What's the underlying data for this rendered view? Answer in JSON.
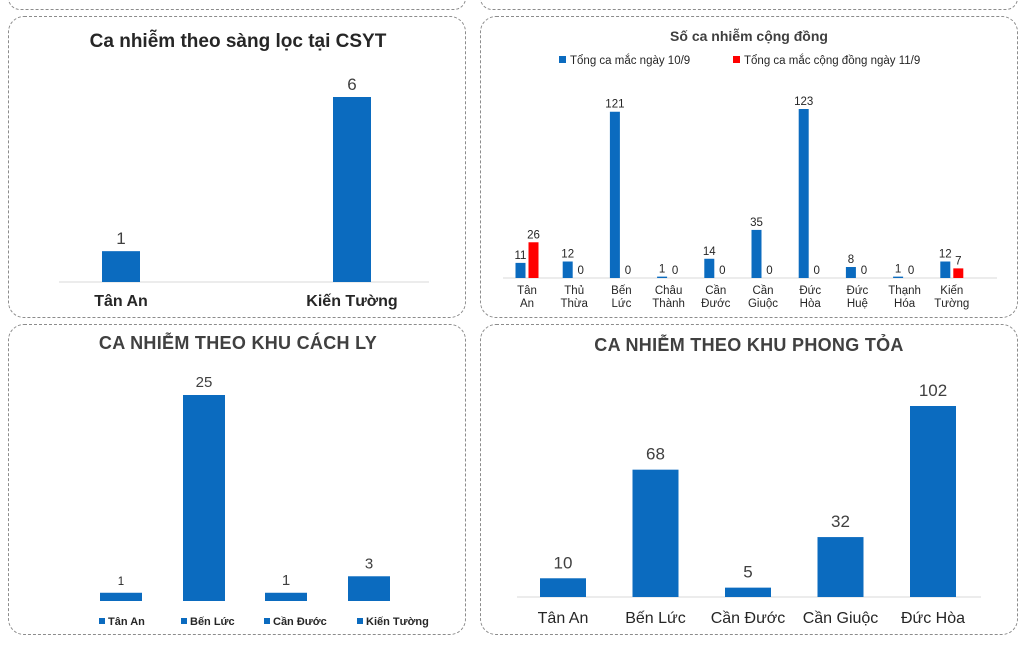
{
  "chart_data": [
    {
      "type": "bar",
      "title": "Ca nhiễm theo sàng lọc tại CSYT",
      "categories": [
        "Tân An",
        "Kiến Tường"
      ],
      "values": [
        1,
        6
      ],
      "ylim": [
        0,
        6
      ],
      "color": "#0b6bbf",
      "legend": "none"
    },
    {
      "type": "bar",
      "title": "Số ca nhiễm cộng đồng",
      "categories": [
        "Tân An",
        "Thủ Thừa",
        "Bến Lức",
        "Châu Thành",
        "Cần Đước",
        "Cần Giuộc",
        "Đức Hòa",
        "Đức Huệ",
        "Thạnh Hóa",
        "Kiến Tường"
      ],
      "series": [
        {
          "name": "Tổng ca mắc ngày 10/9",
          "color": "#0b6bbf",
          "values": [
            11,
            12,
            121,
            1,
            14,
            35,
            123,
            8,
            1,
            12
          ]
        },
        {
          "name": "Tổng ca mắc cộng đồng ngày 11/9",
          "color": "#ff0000",
          "values": [
            26,
            0,
            0,
            0,
            0,
            0,
            0,
            0,
            0,
            7
          ]
        }
      ],
      "ylim": [
        0,
        123
      ],
      "legend": "top"
    },
    {
      "type": "bar",
      "title": "CA NHIỄM THEO KHU CÁCH LY",
      "categories": [
        "Tân An",
        "Bến Lức",
        "Cần Đước",
        "Kiến Tường"
      ],
      "values": [
        1,
        25,
        1,
        3
      ],
      "ylim": [
        0,
        25
      ],
      "color": "#0b6bbf",
      "legend": "bottom"
    },
    {
      "type": "bar",
      "title": "CA NHIỄM THEO KHU PHONG TỎA",
      "categories": [
        "Tân An",
        "Bến Lức",
        "Cần Đước",
        "Cần Giuộc",
        "Đức Hòa"
      ],
      "values": [
        10,
        68,
        5,
        32,
        102
      ],
      "ylim": [
        0,
        102
      ],
      "color": "#0b6bbf",
      "legend": "none"
    }
  ]
}
